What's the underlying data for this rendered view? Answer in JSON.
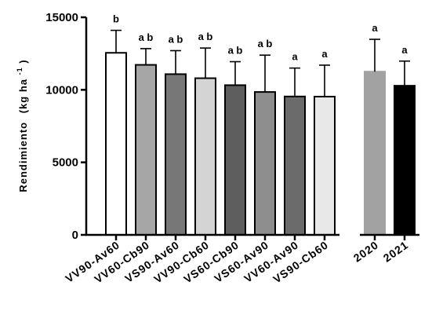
{
  "chart_data": {
    "type": "bar",
    "ylabel": "Rendimiento",
    "ylabel_unit": "(kg ha",
    "ylabel_sup": "-1",
    "ylabel_close": ")",
    "ylim": [
      0,
      15000
    ],
    "yticks": [
      {
        "value": 0,
        "label": "0"
      },
      {
        "value": 5000,
        "label": "5000"
      },
      {
        "value": 10000,
        "label": "10000"
      },
      {
        "value": 15000,
        "label": "15000"
      }
    ],
    "categories": [
      "VV90-Av60",
      "VV60-Cb90",
      "VS90-Av60",
      "VV90-Cb60",
      "VS60-Cb90",
      "VS60-Av90",
      "VV60-Av90",
      "VS90-Cb60",
      "2020",
      "2021"
    ],
    "values": [
      12550,
      11720,
      11080,
      10800,
      10320,
      9850,
      9540,
      9530,
      11250,
      10280
    ],
    "errors": [
      1550,
      1120,
      1620,
      2080,
      1620,
      2540,
      1960,
      2170,
      2230,
      1700
    ],
    "significance": [
      "b",
      "a b",
      "a b",
      "a b",
      "a b",
      "a b",
      "a",
      "a",
      "a",
      "a"
    ],
    "colors": [
      "#ffffff",
      "#a6a6a6",
      "#777777",
      "#d4d4d4",
      "#5e5e5e",
      "#8e8e8e",
      "#6b6b6b",
      "#e8e8e8",
      "#a2a2a2",
      "#000000"
    ],
    "border_colors": [
      "#000000",
      "#000000",
      "#000000",
      "#000000",
      "#000000",
      "#000000",
      "#000000",
      "#000000",
      "#a2a2a2",
      "#000000"
    ],
    "grid": false,
    "legend": "none"
  }
}
